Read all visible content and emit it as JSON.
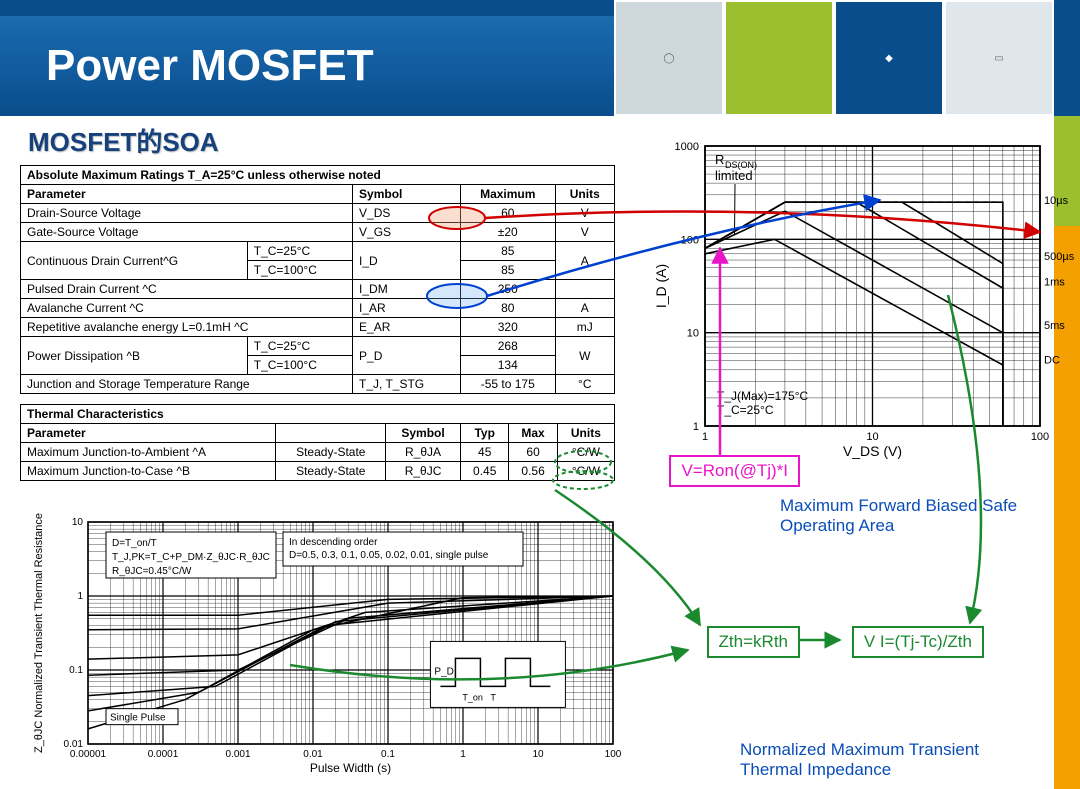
{
  "title": "Power MOSFET",
  "subtitle": "MOSFET的SOA",
  "abs_table": {
    "header_row": "Absolute Maximum Ratings  T_A=25°C unless otherwise noted",
    "columns": [
      "Parameter",
      "Symbol",
      "Maximum",
      "Units"
    ],
    "rows": [
      {
        "param": "Drain-Source Voltage",
        "cond": "",
        "sym": "V_DS",
        "max": "60",
        "unit": "V"
      },
      {
        "param": "Gate-Source Voltage",
        "cond": "",
        "sym": "V_GS",
        "max": "±20",
        "unit": "V"
      },
      {
        "param": "Continuous Drain Current^G",
        "cond": "T_C=25°C",
        "sym": "I_D",
        "max": "85",
        "unit": "A",
        "rowspan": 2
      },
      {
        "param": "",
        "cond": "T_C=100°C",
        "sym": "",
        "max": "85",
        "unit": ""
      },
      {
        "param": "Pulsed Drain Current ^C",
        "cond": "",
        "sym": "I_DM",
        "max": "250",
        "unit": ""
      },
      {
        "param": "Avalanche Current ^C",
        "cond": "",
        "sym": "I_AR",
        "max": "80",
        "unit": "A"
      },
      {
        "param": "Repetitive avalanche energy L=0.1mH ^C",
        "cond": "",
        "sym": "E_AR",
        "max": "320",
        "unit": "mJ"
      },
      {
        "param": "Power Dissipation ^B",
        "cond": "T_C=25°C",
        "sym": "P_D",
        "max": "268",
        "unit": "W",
        "rowspan": 2
      },
      {
        "param": "",
        "cond": "T_C=100°C",
        "sym": "",
        "max": "134",
        "unit": ""
      },
      {
        "param": "Junction and Storage Temperature Range",
        "cond": "",
        "sym": "T_J, T_STG",
        "max": "-55 to 175",
        "unit": "°C"
      }
    ]
  },
  "thermal_table": {
    "header_row": "Thermal Characteristics",
    "columns": [
      "Parameter",
      "",
      "Symbol",
      "Typ",
      "Max",
      "Units"
    ],
    "rows": [
      {
        "p": "Maximum Junction-to-Ambient ^A",
        "c": "Steady-State",
        "s": "R_θJA",
        "t": "45",
        "m": "60",
        "u": "°C/W"
      },
      {
        "p": "Maximum Junction-to-Case ^B",
        "c": "Steady-State",
        "s": "R_θJC",
        "t": "0.45",
        "m": "0.56",
        "u": "°C/W"
      }
    ]
  },
  "soa_chart": {
    "type": "loglog-line",
    "title_lines": [
      "R_DS(ON)",
      "limited"
    ],
    "xlabel": "V_DS (V)",
    "ylabel": "I_D (A)",
    "xlim": [
      1,
      100
    ],
    "ylim": [
      1,
      1000
    ],
    "xticks": [
      1,
      10,
      100
    ],
    "yticks": [
      1,
      10,
      100,
      1000
    ],
    "series_labels": [
      "10µs",
      "500µs",
      "1ms",
      "5ms",
      "DC"
    ],
    "series_color": "#000000",
    "annotations": [
      "T_J(Max)=175°C",
      "T_C=25°C"
    ],
    "series": [
      {
        "name": "rdson",
        "pts": [
          [
            1,
            80
          ],
          [
            3,
            250
          ]
        ],
        "dash": true
      },
      {
        "name": "limit",
        "pts": [
          [
            3,
            250
          ],
          [
            60,
            250
          ]
        ],
        "dash": true
      },
      {
        "name": "10us",
        "pts": [
          [
            1,
            80
          ],
          [
            3,
            250
          ],
          [
            60,
            250
          ],
          [
            60,
            1
          ]
        ]
      },
      {
        "name": "500us",
        "pts": [
          [
            1,
            80
          ],
          [
            3,
            250
          ],
          [
            15,
            250
          ],
          [
            60,
            55
          ],
          [
            60,
            1
          ]
        ]
      },
      {
        "name": "1ms",
        "pts": [
          [
            1,
            80
          ],
          [
            3,
            250
          ],
          [
            8,
            250
          ],
          [
            60,
            30
          ],
          [
            60,
            1
          ]
        ]
      },
      {
        "name": "5ms",
        "pts": [
          [
            1,
            80
          ],
          [
            3,
            200
          ],
          [
            60,
            10
          ],
          [
            60,
            1
          ]
        ]
      },
      {
        "name": "DC",
        "pts": [
          [
            1,
            70
          ],
          [
            2.6,
            100
          ],
          [
            60,
            4.5
          ],
          [
            60,
            1
          ]
        ]
      }
    ],
    "background": "#ffffff",
    "grid": "#000000",
    "line_w": 1.6
  },
  "formulas": {
    "vron": "V=Ron(@Tj)*I",
    "zth": "Zth=kRth",
    "vi": "V I=(Tj-Tc)/Zth"
  },
  "captions": {
    "soa": "Maximum Forward Biased Safe Operating Area",
    "zth": "Normalized Maximum Transient Thermal Impedance"
  },
  "zth_chart": {
    "type": "loglog-line",
    "xlabel": "Pulse Width (s)",
    "ylabel": "Z_θJC Normalized Transient\nThermal Resistance",
    "xlim": [
      1e-05,
      100
    ],
    "ylim": [
      0.01,
      10
    ],
    "xticks": [
      1e-05,
      0.0001,
      0.001,
      0.01,
      0.1,
      1,
      10,
      100
    ],
    "yticks": [
      0.01,
      0.1,
      1,
      10
    ],
    "text_box1": [
      "D=T_on/T",
      "T_J,PK=T_C+P_DM·Z_θJC·R_θJC",
      "R_θJC=0.45°C/W"
    ],
    "text_box2": [
      "In descending order",
      "D=0.5, 0.3, 0.1, 0.05, 0.02, 0.01, single pulse"
    ],
    "single_pulse_label": "Single Pulse",
    "inset_labels": [
      "P_D",
      "T_on",
      "T"
    ],
    "series": [
      {
        "d": "0.5",
        "pts": [
          [
            1e-05,
            0.55
          ],
          [
            0.001,
            0.55
          ],
          [
            0.1,
            0.9
          ],
          [
            100,
            1
          ]
        ]
      },
      {
        "d": "0.3",
        "pts": [
          [
            1e-05,
            0.35
          ],
          [
            0.001,
            0.36
          ],
          [
            0.1,
            0.8
          ],
          [
            100,
            1
          ]
        ]
      },
      {
        "d": "0.1",
        "pts": [
          [
            1e-05,
            0.14
          ],
          [
            0.001,
            0.16
          ],
          [
            0.05,
            0.6
          ],
          [
            100,
            1
          ]
        ]
      },
      {
        "d": "0.05",
        "pts": [
          [
            1e-05,
            0.085
          ],
          [
            0.001,
            0.1
          ],
          [
            0.03,
            0.5
          ],
          [
            100,
            1
          ]
        ]
      },
      {
        "d": "0.02",
        "pts": [
          [
            1e-05,
            0.045
          ],
          [
            0.0005,
            0.06
          ],
          [
            0.02,
            0.45
          ],
          [
            100,
            1
          ]
        ]
      },
      {
        "d": "0.01",
        "pts": [
          [
            1e-05,
            0.028
          ],
          [
            0.0003,
            0.05
          ],
          [
            0.015,
            0.4
          ],
          [
            100,
            1
          ]
        ]
      },
      {
        "d": "sp",
        "pts": [
          [
            1e-05,
            0.016
          ],
          [
            0.0002,
            0.04
          ],
          [
            0.01,
            0.35
          ],
          [
            1,
            0.95
          ],
          [
            100,
            1
          ]
        ]
      }
    ],
    "line_color": "#000000",
    "grid": "#000000",
    "line_w": 1.5
  },
  "colors": {
    "brand_blue": "#0a4d8c",
    "accent_green": "#9bbf2e",
    "accent_orange": "#f4a000",
    "arrow_red": "#d00000",
    "arrow_blue": "#0040d0",
    "arrow_green": "#1b8a2f",
    "magenta": "#e815c9"
  }
}
